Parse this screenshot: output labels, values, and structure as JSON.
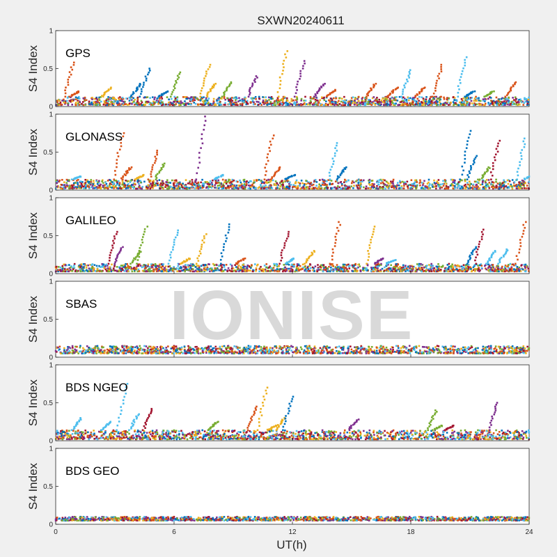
{
  "title": "SXWN20240611",
  "xlabel": "UT(h)",
  "watermark": "IONISE",
  "colors": [
    "#0072bd",
    "#d95319",
    "#edb120",
    "#7e2f8e",
    "#77ac30",
    "#4dbeee",
    "#a2142f"
  ],
  "chart_data": [
    {
      "type": "scatter",
      "panel_label": "GPS",
      "ylabel": "S4 Index",
      "xlim": [
        0,
        24
      ],
      "ylim": [
        0,
        1
      ],
      "x_ticks": [
        0,
        6,
        12,
        18,
        24
      ],
      "y_ticks": [
        "1",
        "0.5",
        "0"
      ],
      "baseline": [
        0.02,
        0.13
      ],
      "spikes": [
        {
          "x": 0.9,
          "y": 0.58,
          "c": 1
        },
        {
          "x": 1.2,
          "y": 0.2,
          "c": 1
        },
        {
          "x": 2.8,
          "y": 0.25,
          "c": 2
        },
        {
          "x": 4.3,
          "y": 0.3,
          "c": 0
        },
        {
          "x": 4.75,
          "y": 0.5,
          "c": 0
        },
        {
          "x": 5.7,
          "y": 0.2,
          "c": 0
        },
        {
          "x": 6.3,
          "y": 0.45,
          "c": 4
        },
        {
          "x": 7.8,
          "y": 0.55,
          "c": 2
        },
        {
          "x": 8.1,
          "y": 0.3,
          "c": 2
        },
        {
          "x": 8.9,
          "y": 0.32,
          "c": 4
        },
        {
          "x": 10.2,
          "y": 0.4,
          "c": 3
        },
        {
          "x": 11.7,
          "y": 0.73,
          "c": 2
        },
        {
          "x": 12.6,
          "y": 0.6,
          "c": 3
        },
        {
          "x": 13.6,
          "y": 0.3,
          "c": 3
        },
        {
          "x": 14.2,
          "y": 0.22,
          "c": 1
        },
        {
          "x": 16.2,
          "y": 0.3,
          "c": 1
        },
        {
          "x": 17.3,
          "y": 0.25,
          "c": 1
        },
        {
          "x": 18.0,
          "y": 0.48,
          "c": 5
        },
        {
          "x": 18.7,
          "y": 0.25,
          "c": 1
        },
        {
          "x": 19.6,
          "y": 0.55,
          "c": 1
        },
        {
          "x": 20.8,
          "y": 0.65,
          "c": 5
        },
        {
          "x": 21.2,
          "y": 0.2,
          "c": 0
        },
        {
          "x": 22.2,
          "y": 0.2,
          "c": 4
        },
        {
          "x": 23.3,
          "y": 0.32,
          "c": 1
        }
      ]
    },
    {
      "type": "scatter",
      "panel_label": "GLONASS",
      "ylabel": "S4 Index",
      "xlim": [
        0,
        24
      ],
      "ylim": [
        0,
        1
      ],
      "x_ticks": [
        0,
        6,
        12,
        18,
        24
      ],
      "y_ticks": [
        "1",
        "0.5",
        "0"
      ],
      "baseline": [
        0.02,
        0.14
      ],
      "spikes": [
        {
          "x": 1.3,
          "y": 0.18,
          "c": 5
        },
        {
          "x": 3.4,
          "y": 0.75,
          "c": 1
        },
        {
          "x": 3.8,
          "y": 0.3,
          "c": 1
        },
        {
          "x": 4.5,
          "y": 0.2,
          "c": 2
        },
        {
          "x": 5.2,
          "y": 0.52,
          "c": 1
        },
        {
          "x": 5.5,
          "y": 0.35,
          "c": 4
        },
        {
          "x": 7.6,
          "y": 0.97,
          "c": 3
        },
        {
          "x": 8.5,
          "y": 0.2,
          "c": 5
        },
        {
          "x": 11.0,
          "y": 0.72,
          "c": 1
        },
        {
          "x": 11.4,
          "y": 0.3,
          "c": 1
        },
        {
          "x": 12.1,
          "y": 0.2,
          "c": 0
        },
        {
          "x": 14.3,
          "y": 0.62,
          "c": 5
        },
        {
          "x": 14.7,
          "y": 0.3,
          "c": 0
        },
        {
          "x": 21.0,
          "y": 0.78,
          "c": 0
        },
        {
          "x": 21.3,
          "y": 0.45,
          "c": 0
        },
        {
          "x": 22.0,
          "y": 0.3,
          "c": 4
        },
        {
          "x": 22.5,
          "y": 0.65,
          "c": 6
        },
        {
          "x": 23.8,
          "y": 0.68,
          "c": 5
        },
        {
          "x": 24.2,
          "y": 0.2,
          "c": 5
        }
      ]
    },
    {
      "type": "scatter",
      "panel_label": "GALILEO",
      "ylabel": "S4 Index",
      "xlim": [
        0,
        24
      ],
      "ylim": [
        0,
        1
      ],
      "x_ticks": [
        0,
        6,
        12,
        18,
        24
      ],
      "y_ticks": [
        "1",
        "0.5",
        "0"
      ],
      "baseline": [
        0.03,
        0.13
      ],
      "spikes": [
        {
          "x": 3.1,
          "y": 0.55,
          "c": 6
        },
        {
          "x": 3.4,
          "y": 0.35,
          "c": 3
        },
        {
          "x": 4.3,
          "y": 0.3,
          "c": 4
        },
        {
          "x": 4.6,
          "y": 0.62,
          "c": 4
        },
        {
          "x": 6.2,
          "y": 0.57,
          "c": 5
        },
        {
          "x": 6.8,
          "y": 0.2,
          "c": 2
        },
        {
          "x": 7.6,
          "y": 0.52,
          "c": 2
        },
        {
          "x": 8.8,
          "y": 0.65,
          "c": 0
        },
        {
          "x": 9.6,
          "y": 0.2,
          "c": 1
        },
        {
          "x": 11.8,
          "y": 0.55,
          "c": 6
        },
        {
          "x": 12.1,
          "y": 0.2,
          "c": 5
        },
        {
          "x": 13.1,
          "y": 0.3,
          "c": 2
        },
        {
          "x": 14.4,
          "y": 0.68,
          "c": 1
        },
        {
          "x": 16.2,
          "y": 0.62,
          "c": 2
        },
        {
          "x": 16.6,
          "y": 0.2,
          "c": 3
        },
        {
          "x": 17.2,
          "y": 0.18,
          "c": 5
        },
        {
          "x": 21.3,
          "y": 0.35,
          "c": 0
        },
        {
          "x": 21.7,
          "y": 0.58,
          "c": 6
        },
        {
          "x": 22.3,
          "y": 0.3,
          "c": 5
        },
        {
          "x": 22.9,
          "y": 0.32,
          "c": 5
        },
        {
          "x": 23.8,
          "y": 0.68,
          "c": 1
        }
      ]
    },
    {
      "type": "scatter",
      "panel_label": "SBAS",
      "ylabel": "S4 Index",
      "xlim": [
        0,
        24
      ],
      "ylim": [
        0,
        1
      ],
      "x_ticks": [
        0,
        6,
        12,
        18,
        24
      ],
      "y_ticks": [
        "1",
        "0.5",
        "0"
      ],
      "baseline": [
        0.05,
        0.15
      ],
      "spikes": []
    },
    {
      "type": "scatter",
      "panel_label": "BDS NGEO",
      "ylabel": "S4 Index",
      "xlim": [
        0,
        24
      ],
      "ylim": [
        0,
        1
      ],
      "x_ticks": [
        0,
        6,
        12,
        18,
        24
      ],
      "y_ticks": [
        "1",
        "0.5",
        "0"
      ],
      "baseline": [
        0.02,
        0.14
      ],
      "spikes": [
        {
          "x": 1.3,
          "y": 0.3,
          "c": 5
        },
        {
          "x": 2.8,
          "y": 0.25,
          "c": 5
        },
        {
          "x": 3.6,
          "y": 0.75,
          "c": 5
        },
        {
          "x": 4.2,
          "y": 0.35,
          "c": 5
        },
        {
          "x": 4.9,
          "y": 0.42,
          "c": 6
        },
        {
          "x": 8.2,
          "y": 0.25,
          "c": 4
        },
        {
          "x": 10.2,
          "y": 0.45,
          "c": 1
        },
        {
          "x": 10.7,
          "y": 0.7,
          "c": 2
        },
        {
          "x": 11.2,
          "y": 0.2,
          "c": 2
        },
        {
          "x": 11.6,
          "y": 0.3,
          "c": 2
        },
        {
          "x": 12.0,
          "y": 0.58,
          "c": 0
        },
        {
          "x": 15.3,
          "y": 0.28,
          "c": 3
        },
        {
          "x": 19.3,
          "y": 0.4,
          "c": 4
        },
        {
          "x": 19.6,
          "y": 0.2,
          "c": 4
        },
        {
          "x": 20.2,
          "y": 0.2,
          "c": 6
        },
        {
          "x": 22.4,
          "y": 0.5,
          "c": 3
        }
      ]
    },
    {
      "type": "scatter",
      "panel_label": "BDS GEO",
      "ylabel": "S4 Index",
      "xlim": [
        0,
        24
      ],
      "ylim": [
        0,
        1
      ],
      "x_ticks": [
        0,
        6,
        12,
        18,
        24
      ],
      "y_ticks": [
        "1",
        "0.5",
        "0"
      ],
      "baseline": [
        0.05,
        0.1
      ],
      "spikes": []
    }
  ]
}
